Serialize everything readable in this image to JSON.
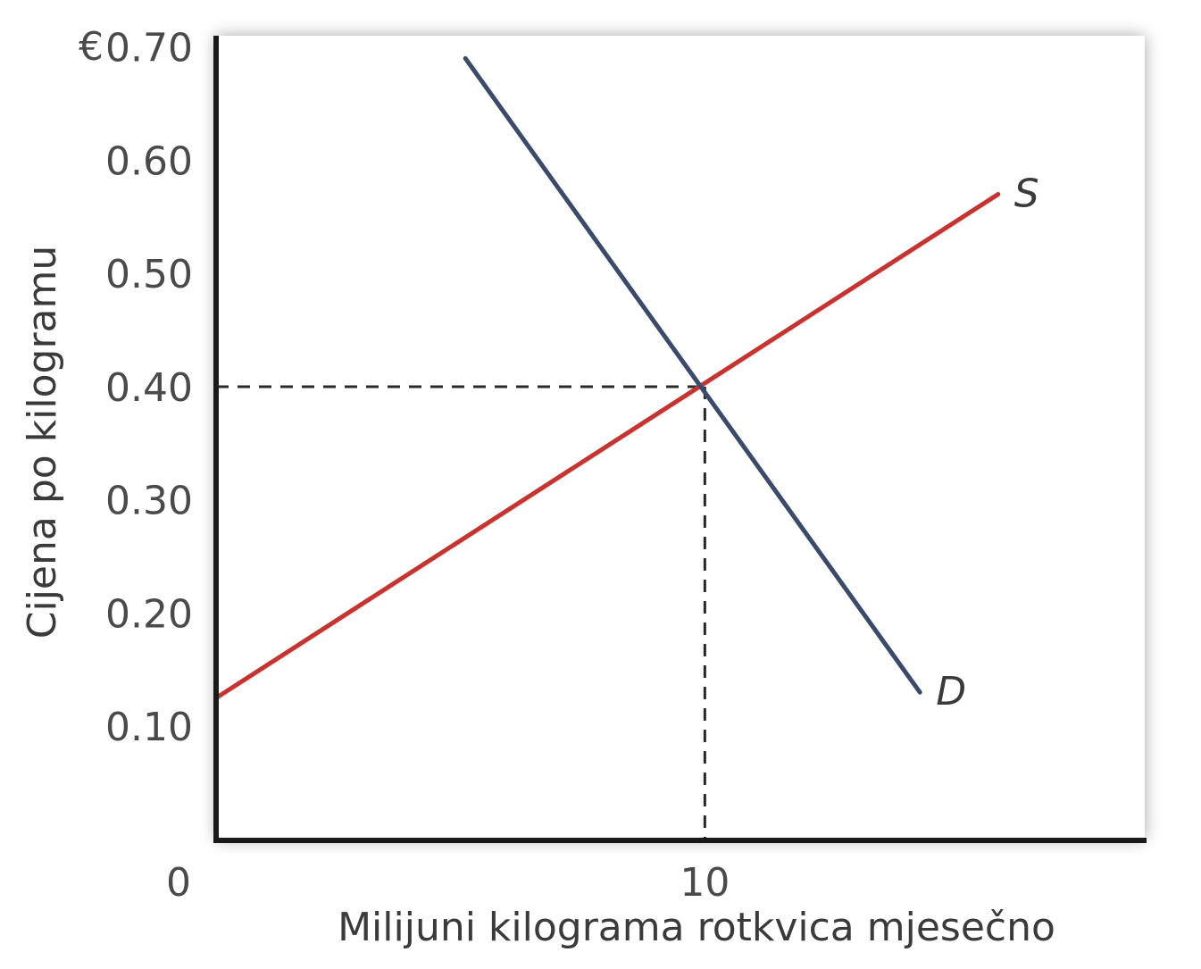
{
  "chart_data": {
    "type": "line",
    "title": "",
    "xlabel": "Milijuni kilograma rotkvica mjesečno",
    "ylabel": "Cijena po kilogramu",
    "y_currency_symbol": "€",
    "xlim": [
      0,
      19
    ],
    "ylim": [
      0,
      0.71
    ],
    "x_ticks": [
      {
        "value": 0,
        "label": "0"
      },
      {
        "value": 10,
        "label": "10"
      }
    ],
    "y_ticks": [
      {
        "value": 0.1,
        "label": "0.10"
      },
      {
        "value": 0.2,
        "label": "0.20"
      },
      {
        "value": 0.3,
        "label": "0.30"
      },
      {
        "value": 0.4,
        "label": "0.40"
      },
      {
        "value": 0.5,
        "label": "0.50"
      },
      {
        "value": 0.6,
        "label": "0.60"
      },
      {
        "value": 0.7,
        "label": "0.70"
      }
    ],
    "grid": false,
    "series": [
      {
        "name": "S",
        "color": "#c8322f",
        "points": [
          [
            0,
            0.125
          ],
          [
            16,
            0.57
          ]
        ]
      },
      {
        "name": "D",
        "color": "#3a4a6b",
        "points": [
          [
            5.1,
            0.69
          ],
          [
            14.4,
            0.13
          ]
        ]
      }
    ],
    "reference_lines": {
      "equilibrium": {
        "x": 10,
        "y": 0.4,
        "style": "dashed"
      }
    }
  }
}
